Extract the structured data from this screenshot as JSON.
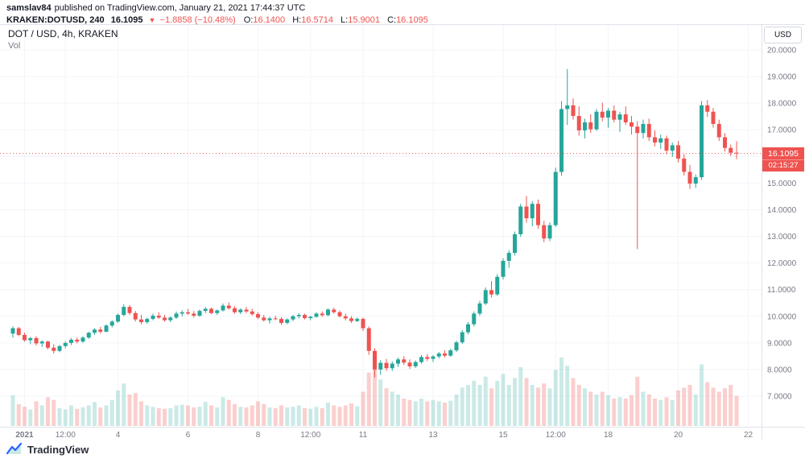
{
  "header": {
    "author": "samslav84",
    "published_text": "published on TradingView.com, January 21, 2021 17:44:37 UTC",
    "symbol_line": "KRAKEN:DOTUSD, 240",
    "last_price": "16.1095",
    "change_icon": "▼",
    "change_text": "−1.8858 (−10.48%)",
    "ohlc": {
      "o_label": "O:",
      "o": "16.1400",
      "h_label": "H:",
      "h": "16.5714",
      "l_label": "L:",
      "l": "15.9001",
      "c_label": "C:",
      "c": "16.1095"
    }
  },
  "chart": {
    "title": "DOT / USD, 4h, KRAKEN",
    "vol_label": "Vol",
    "currency_button": "USD",
    "price_tag": {
      "price": "16.1095",
      "countdown": "02:15:27"
    }
  },
  "footer": {
    "brand": "TradingView"
  },
  "colors": {
    "up": "#26a69a",
    "down": "#ef5350",
    "vol_up": "rgba(38,166,154,0.24)",
    "vol_down": "rgba(239,83,80,0.28)",
    "axis_text": "#787b86",
    "grid": "#f2f5f9",
    "border": "#e0e3eb",
    "brand_blue": "#2962ff"
  },
  "chart_data": {
    "type": "candlestick",
    "title": "DOT / USD, 4h, KRAKEN on Kraken",
    "timeframe": "4h",
    "last_price": 16.1095,
    "y_axis": {
      "top_price": 20,
      "ticks": [
        20,
        19,
        18,
        17,
        16,
        15,
        14,
        13,
        12,
        11,
        10,
        9,
        8,
        7
      ],
      "decimals": 4
    },
    "x_axis": {
      "ticks": [
        {
          "i": 2,
          "label": "2021",
          "bold": true
        },
        {
          "i": 9,
          "label": "12:00"
        },
        {
          "i": 18,
          "label": "4"
        },
        {
          "i": 30,
          "label": "6"
        },
        {
          "i": 42,
          "label": "8"
        },
        {
          "i": 51,
          "label": "12:00"
        },
        {
          "i": 60,
          "label": "11"
        },
        {
          "i": 72,
          "label": "13"
        },
        {
          "i": 84,
          "label": "15"
        },
        {
          "i": 93,
          "label": "12:00"
        },
        {
          "i": 102,
          "label": "18"
        },
        {
          "i": 114,
          "label": "20"
        },
        {
          "i": 126,
          "label": "22"
        }
      ]
    },
    "candles": [
      [
        9.35,
        9.62,
        9.2,
        9.55
      ],
      [
        9.55,
        9.6,
        9.25,
        9.3
      ],
      [
        9.3,
        9.38,
        9.05,
        9.1
      ],
      [
        9.1,
        9.22,
        8.95,
        9.18
      ],
      [
        9.18,
        9.25,
        8.9,
        8.98
      ],
      [
        8.98,
        9.1,
        8.85,
        9.05
      ],
      [
        9.05,
        9.08,
        8.75,
        8.82
      ],
      [
        8.82,
        8.95,
        8.6,
        8.7
      ],
      [
        8.7,
        8.92,
        8.65,
        8.88
      ],
      [
        8.88,
        9.05,
        8.8,
        9.0
      ],
      [
        9.0,
        9.18,
        8.92,
        9.12
      ],
      [
        9.12,
        9.2,
        8.98,
        9.05
      ],
      [
        9.05,
        9.25,
        9.0,
        9.2
      ],
      [
        9.2,
        9.42,
        9.15,
        9.38
      ],
      [
        9.38,
        9.55,
        9.3,
        9.5
      ],
      [
        9.5,
        9.6,
        9.35,
        9.42
      ],
      [
        9.42,
        9.7,
        9.4,
        9.65
      ],
      [
        9.65,
        9.85,
        9.58,
        9.8
      ],
      [
        9.8,
        10.1,
        9.75,
        10.05
      ],
      [
        10.05,
        10.45,
        10.0,
        10.35
      ],
      [
        10.35,
        10.42,
        10.05,
        10.12
      ],
      [
        10.12,
        10.2,
        9.8,
        9.88
      ],
      [
        9.88,
        10.05,
        9.7,
        9.78
      ],
      [
        9.78,
        9.95,
        9.72,
        9.9
      ],
      [
        9.9,
        10.1,
        9.85,
        10.02
      ],
      [
        10.02,
        10.15,
        9.9,
        9.95
      ],
      [
        9.95,
        10.05,
        9.8,
        9.85
      ],
      [
        9.85,
        10.0,
        9.78,
        9.95
      ],
      [
        9.95,
        10.18,
        9.9,
        10.1
      ],
      [
        10.1,
        10.22,
        10.0,
        10.15
      ],
      [
        10.15,
        10.28,
        10.05,
        10.1
      ],
      [
        10.1,
        10.2,
        9.95,
        10.02
      ],
      [
        10.02,
        10.25,
        9.98,
        10.2
      ],
      [
        10.2,
        10.35,
        10.12,
        10.28
      ],
      [
        10.28,
        10.32,
        10.08,
        10.12
      ],
      [
        10.12,
        10.25,
        10.05,
        10.22
      ],
      [
        10.22,
        10.48,
        10.18,
        10.4
      ],
      [
        10.4,
        10.52,
        10.25,
        10.3
      ],
      [
        10.3,
        10.38,
        10.1,
        10.15
      ],
      [
        10.15,
        10.3,
        10.08,
        10.25
      ],
      [
        10.25,
        10.35,
        10.12,
        10.18
      ],
      [
        10.18,
        10.28,
        10.02,
        10.08
      ],
      [
        10.08,
        10.15,
        9.9,
        9.95
      ],
      [
        9.95,
        10.05,
        9.8,
        9.85
      ],
      [
        9.85,
        9.98,
        9.72,
        9.92
      ],
      [
        9.92,
        10.02,
        9.85,
        9.9
      ],
      [
        9.9,
        9.96,
        9.68,
        9.75
      ],
      [
        9.75,
        9.92,
        9.7,
        9.88
      ],
      [
        9.88,
        10.05,
        9.82,
        10.0
      ],
      [
        10.0,
        10.12,
        9.92,
        10.05
      ],
      [
        10.05,
        10.1,
        9.88,
        9.93
      ],
      [
        9.93,
        10.02,
        9.85,
        9.98
      ],
      [
        9.98,
        10.15,
        9.94,
        10.1
      ],
      [
        10.1,
        10.18,
        9.98,
        10.04
      ],
      [
        10.04,
        10.3,
        10.0,
        10.25
      ],
      [
        10.25,
        10.32,
        10.1,
        10.15
      ],
      [
        10.15,
        10.22,
        9.95,
        10.0
      ],
      [
        10.0,
        10.1,
        9.85,
        9.92
      ],
      [
        9.92,
        10.0,
        9.75,
        9.82
      ],
      [
        9.82,
        9.95,
        9.78,
        9.9
      ],
      [
        9.9,
        9.95,
        9.45,
        9.55
      ],
      [
        9.55,
        9.62,
        8.55,
        8.7
      ],
      [
        8.7,
        8.8,
        7.7,
        8.0
      ],
      [
        8.0,
        8.35,
        7.8,
        8.25
      ],
      [
        8.25,
        8.4,
        7.95,
        8.05
      ],
      [
        8.05,
        8.3,
        7.95,
        8.22
      ],
      [
        8.22,
        8.45,
        8.1,
        8.38
      ],
      [
        8.38,
        8.5,
        8.18,
        8.26
      ],
      [
        8.26,
        8.38,
        8.02,
        8.12
      ],
      [
        8.12,
        8.34,
        8.06,
        8.28
      ],
      [
        8.28,
        8.55,
        8.22,
        8.47
      ],
      [
        8.47,
        8.58,
        8.32,
        8.4
      ],
      [
        8.4,
        8.54,
        8.28,
        8.49
      ],
      [
        8.49,
        8.66,
        8.42,
        8.6
      ],
      [
        8.6,
        8.72,
        8.46,
        8.52
      ],
      [
        8.52,
        8.78,
        8.48,
        8.72
      ],
      [
        8.72,
        9.08,
        8.66,
        9.02
      ],
      [
        9.02,
        9.48,
        8.96,
        9.4
      ],
      [
        9.4,
        9.78,
        9.32,
        9.7
      ],
      [
        9.7,
        10.18,
        9.62,
        10.1
      ],
      [
        10.1,
        10.58,
        10.02,
        10.48
      ],
      [
        10.48,
        11.08,
        10.42,
        10.98
      ],
      [
        10.98,
        11.32,
        10.7,
        10.82
      ],
      [
        10.82,
        11.58,
        10.76,
        11.48
      ],
      [
        11.48,
        12.18,
        11.38,
        12.08
      ],
      [
        12.08,
        12.48,
        11.82,
        12.38
      ],
      [
        12.38,
        13.18,
        12.28,
        13.08
      ],
      [
        13.08,
        14.22,
        12.98,
        14.12
      ],
      [
        14.12,
        14.52,
        13.52,
        13.68
      ],
      [
        13.68,
        14.32,
        13.38,
        14.22
      ],
      [
        14.22,
        14.38,
        13.28,
        13.42
      ],
      [
        13.42,
        13.58,
        12.78,
        12.92
      ],
      [
        12.92,
        13.52,
        12.82,
        13.42
      ],
      [
        13.42,
        15.58,
        13.36,
        15.42
      ],
      [
        15.42,
        18.08,
        15.28,
        17.78
      ],
      [
        17.78,
        19.28,
        17.18,
        17.92
      ],
      [
        17.92,
        18.18,
        17.38,
        17.52
      ],
      [
        17.52,
        17.88,
        16.78,
        16.98
      ],
      [
        16.98,
        17.42,
        16.68,
        17.28
      ],
      [
        17.28,
        17.58,
        16.88,
        17.02
      ],
      [
        17.02,
        17.78,
        16.96,
        17.68
      ],
      [
        17.68,
        18.02,
        17.32,
        17.46
      ],
      [
        17.46,
        17.82,
        17.08,
        17.72
      ],
      [
        17.72,
        17.92,
        17.28,
        17.38
      ],
      [
        17.38,
        17.68,
        16.92,
        17.58
      ],
      [
        17.58,
        17.88,
        17.18,
        17.28
      ],
      [
        17.28,
        17.52,
        16.82,
        17.12
      ],
      [
        17.12,
        17.32,
        12.52,
        16.88
      ],
      [
        16.88,
        17.38,
        16.68,
        17.22
      ],
      [
        17.22,
        17.42,
        16.58,
        16.72
      ],
      [
        16.72,
        16.98,
        16.38,
        16.52
      ],
      [
        16.52,
        16.82,
        16.28,
        16.68
      ],
      [
        16.68,
        16.78,
        16.08,
        16.22
      ],
      [
        16.22,
        16.52,
        15.98,
        16.42
      ],
      [
        16.42,
        16.58,
        15.78,
        15.92
      ],
      [
        15.92,
        16.08,
        15.28,
        15.42
      ],
      [
        15.42,
        15.68,
        14.78,
        14.98
      ],
      [
        14.98,
        15.32,
        14.82,
        15.22
      ],
      [
        15.22,
        18.08,
        15.12,
        17.92
      ],
      [
        17.92,
        18.12,
        17.48,
        17.68
      ],
      [
        17.68,
        17.82,
        17.08,
        17.22
      ],
      [
        17.22,
        17.38,
        16.58,
        16.72
      ],
      [
        16.72,
        16.88,
        16.18,
        16.32
      ],
      [
        16.32,
        16.45,
        16.02,
        16.14
      ],
      [
        16.14,
        16.5714,
        15.9001,
        16.1095
      ]
    ],
    "volumes": [
      0.45,
      0.32,
      0.28,
      0.24,
      0.36,
      0.3,
      0.42,
      0.38,
      0.26,
      0.24,
      0.3,
      0.25,
      0.27,
      0.3,
      0.35,
      0.27,
      0.3,
      0.38,
      0.52,
      0.62,
      0.46,
      0.48,
      0.36,
      0.3,
      0.28,
      0.26,
      0.25,
      0.26,
      0.3,
      0.31,
      0.3,
      0.27,
      0.28,
      0.35,
      0.3,
      0.27,
      0.42,
      0.38,
      0.32,
      0.28,
      0.27,
      0.3,
      0.36,
      0.32,
      0.27,
      0.26,
      0.3,
      0.27,
      0.28,
      0.3,
      0.26,
      0.25,
      0.28,
      0.26,
      0.34,
      0.3,
      0.28,
      0.3,
      0.33,
      0.29,
      0.5,
      0.78,
      0.95,
      0.68,
      0.55,
      0.5,
      0.46,
      0.4,
      0.38,
      0.36,
      0.4,
      0.36,
      0.38,
      0.36,
      0.34,
      0.37,
      0.46,
      0.56,
      0.6,
      0.66,
      0.6,
      0.72,
      0.55,
      0.66,
      0.76,
      0.6,
      0.7,
      0.86,
      0.7,
      0.6,
      0.56,
      0.62,
      0.55,
      0.82,
      1.0,
      0.88,
      0.7,
      0.6,
      0.55,
      0.5,
      0.46,
      0.5,
      0.45,
      0.4,
      0.42,
      0.4,
      0.45,
      0.72,
      0.5,
      0.46,
      0.4,
      0.38,
      0.42,
      0.38,
      0.52,
      0.56,
      0.6,
      0.46,
      0.9,
      0.64,
      0.56,
      0.5,
      0.55,
      0.6,
      0.44
    ]
  }
}
